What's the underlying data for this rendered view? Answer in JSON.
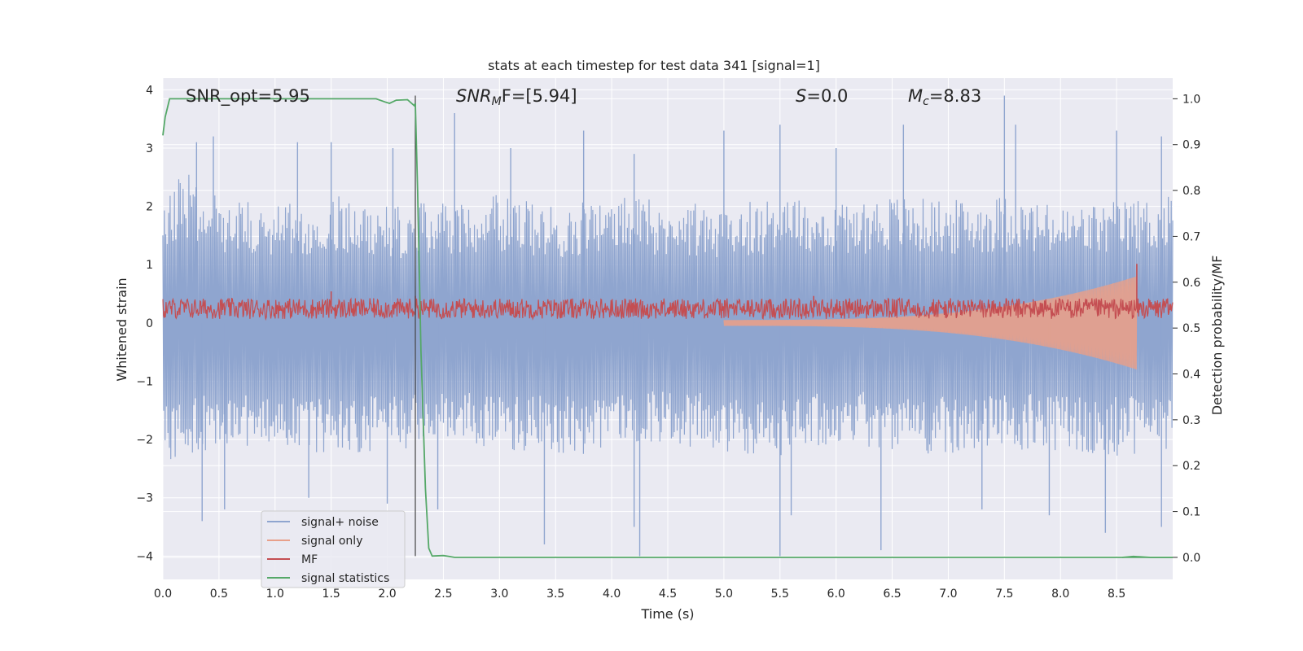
{
  "chart_data": {
    "type": "line",
    "title": "stats at each timestep for test data 341 [signal=1]",
    "xlabel": "Time (s)",
    "ylabel": "Whitened strain",
    "ylabel_right": "Detection probability/MF",
    "xlim": [
      0.0,
      9.0
    ],
    "ylim": [
      -4.4,
      4.2
    ],
    "ylim_right": [
      -0.048,
      1.045
    ],
    "xticks": [
      "0.0",
      "0.5",
      "1.0",
      "1.5",
      "2.0",
      "2.5",
      "3.0",
      "3.5",
      "4.0",
      "4.5",
      "5.0",
      "5.5",
      "6.0",
      "6.5",
      "7.0",
      "7.5",
      "8.0",
      "8.5"
    ],
    "yticks": [
      "4",
      "3",
      "2",
      "1",
      "0",
      "−1",
      "−2",
      "−3",
      "−4"
    ],
    "yticks_right": [
      "1.0",
      "0.9",
      "0.8",
      "0.7",
      "0.6",
      "0.5",
      "0.4",
      "0.3",
      "0.2",
      "0.1",
      "0.0"
    ],
    "annotations": {
      "snr_opt": "SNR_opt=5.95",
      "snr_mf_label": "SNR",
      "snr_mf_sub": "M",
      "snr_mf_rest": "F=[5.94]",
      "s_label": "S",
      "s_value": "=0.0",
      "mc_label": "M",
      "mc_sub": "c",
      "mc_value": "=8.83"
    },
    "vertical_marker_x": 2.25,
    "grid": true,
    "legend_placement": "lower-left",
    "series": [
      {
        "name": "signal+ noise",
        "color": "#8fa5cf",
        "description_axis": "left",
        "envelope_upper": [
          [
            0.0,
            2.3
          ],
          [
            0.2,
            2.6
          ],
          [
            0.5,
            2.2
          ],
          [
            1.0,
            2.0
          ],
          [
            1.5,
            2.2
          ],
          [
            2.0,
            2.0
          ],
          [
            2.5,
            2.1
          ],
          [
            3.0,
            2.2
          ],
          [
            3.5,
            2.0
          ],
          [
            4.0,
            2.2
          ],
          [
            4.5,
            2.1
          ],
          [
            5.0,
            2.0
          ],
          [
            5.5,
            2.2
          ],
          [
            6.0,
            2.1
          ],
          [
            6.5,
            2.2
          ],
          [
            7.0,
            2.1
          ],
          [
            7.5,
            2.2
          ],
          [
            8.0,
            2.0
          ],
          [
            8.5,
            2.1
          ],
          [
            9.0,
            2.2
          ]
        ],
        "envelope_lower": [
          [
            0.0,
            -2.4
          ],
          [
            0.5,
            -2.2
          ],
          [
            1.0,
            -2.1
          ],
          [
            1.5,
            -2.3
          ],
          [
            2.0,
            -2.2
          ],
          [
            2.5,
            -2.1
          ],
          [
            3.0,
            -2.2
          ],
          [
            3.5,
            -2.3
          ],
          [
            4.0,
            -2.2
          ],
          [
            4.5,
            -2.1
          ],
          [
            5.0,
            -2.2
          ],
          [
            5.5,
            -2.3
          ],
          [
            6.0,
            -2.1
          ],
          [
            6.5,
            -2.2
          ],
          [
            7.0,
            -2.3
          ],
          [
            7.5,
            -2.2
          ],
          [
            8.0,
            -2.2
          ],
          [
            8.5,
            -2.3
          ],
          [
            9.0,
            -2.2
          ]
        ],
        "peaks": [
          [
            0.3,
            3.1
          ],
          [
            0.45,
            3.2
          ],
          [
            1.2,
            3.1
          ],
          [
            1.5,
            3.1
          ],
          [
            2.05,
            3.0
          ],
          [
            2.6,
            3.6
          ],
          [
            3.1,
            3.0
          ],
          [
            3.75,
            3.3
          ],
          [
            4.2,
            2.9
          ],
          [
            5.0,
            3.3
          ],
          [
            5.5,
            3.4
          ],
          [
            6.0,
            3.0
          ],
          [
            6.6,
            3.4
          ],
          [
            7.5,
            3.9
          ],
          [
            7.6,
            3.4
          ],
          [
            8.5,
            3.3
          ],
          [
            8.9,
            3.2
          ]
        ],
        "troughs": [
          [
            0.35,
            -3.4
          ],
          [
            0.55,
            -3.2
          ],
          [
            1.3,
            -3.0
          ],
          [
            2.0,
            -3.1
          ],
          [
            2.45,
            -3.2
          ],
          [
            3.4,
            -3.8
          ],
          [
            4.2,
            -3.5
          ],
          [
            4.25,
            -4.0
          ],
          [
            5.5,
            -4.0
          ],
          [
            5.6,
            -3.3
          ],
          [
            6.4,
            -3.9
          ],
          [
            7.3,
            -3.2
          ],
          [
            7.9,
            -3.3
          ],
          [
            8.4,
            -3.6
          ],
          [
            8.9,
            -3.5
          ]
        ]
      },
      {
        "name": "signal only",
        "color": "#e8a08a",
        "description_axis": "left",
        "chirp": {
          "start": 5.0,
          "end": 8.68,
          "amp_start": 0.05,
          "amp_end": 0.8
        }
      },
      {
        "name": "MF",
        "color": "#c44e52",
        "description_axis": "right",
        "baseline": 0.545,
        "band": [
          0.52,
          0.565
        ],
        "spikes": [
          [
            1.5,
            0.58
          ],
          [
            2.25,
            0.57
          ],
          [
            5.8,
            0.57
          ],
          [
            8.68,
            0.64
          ]
        ]
      },
      {
        "name": "signal statistics",
        "color": "#55a868",
        "description_axis": "right",
        "points": [
          [
            0.0,
            0.92
          ],
          [
            0.02,
            0.96
          ],
          [
            0.06,
            1.0
          ],
          [
            1.9,
            1.0
          ],
          [
            1.98,
            0.993
          ],
          [
            2.02,
            0.99
          ],
          [
            2.08,
            0.997
          ],
          [
            2.18,
            0.998
          ],
          [
            2.24,
            0.985
          ],
          [
            2.25,
            0.99
          ],
          [
            2.27,
            0.8
          ],
          [
            2.3,
            0.45
          ],
          [
            2.34,
            0.15
          ],
          [
            2.37,
            0.02
          ],
          [
            2.4,
            0.003
          ],
          [
            2.5,
            0.004
          ],
          [
            2.6,
            0.0
          ],
          [
            9.0,
            0.0
          ]
        ],
        "tail": [
          [
            8.55,
            0.0
          ],
          [
            8.65,
            0.002
          ],
          [
            8.8,
            0.0
          ],
          [
            9.0,
            0.0
          ]
        ]
      }
    ]
  }
}
